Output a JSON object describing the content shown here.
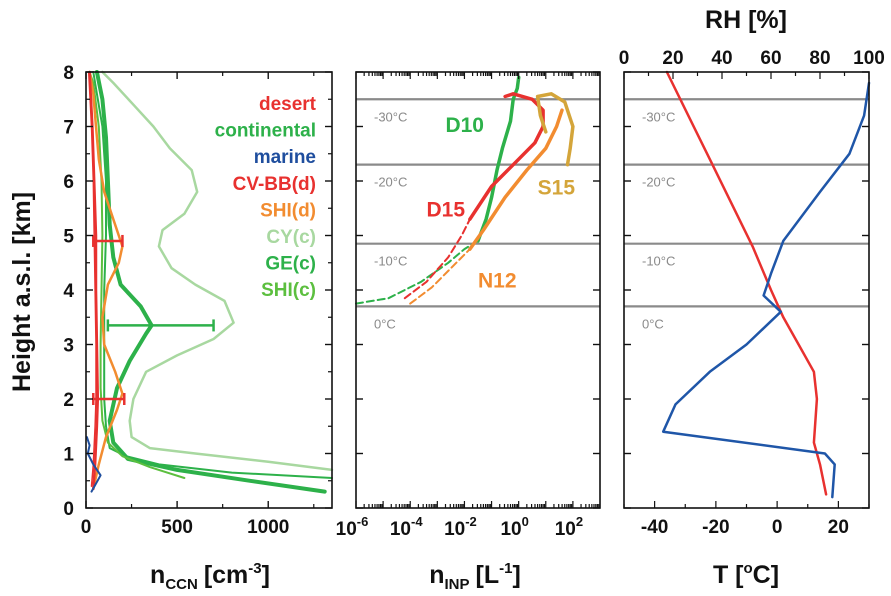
{
  "chart_data": [
    {
      "type": "line",
      "panel": "ccn",
      "xlabel": "n",
      "xlabel_sub": "CCN",
      "xlabel_unit": "[cm",
      "xlabel_sup": "-3",
      "xlabel_end": "]",
      "ylabel": "Height a.s.l. [km]",
      "xlim": [
        0,
        1350
      ],
      "ylim": [
        0,
        8
      ],
      "xticks": [
        0,
        500,
        1000
      ],
      "yticks": [
        0,
        1,
        2,
        3,
        4,
        5,
        6,
        7,
        8
      ],
      "legend": [
        "desert",
        "continental",
        "marine",
        "CV-BB(d)",
        "SHI(d)",
        "CY(c)",
        "GE(c)",
        "SHI(c)"
      ],
      "legend_colors": [
        "#e8312f",
        "#2db14a",
        "#1f4e9e",
        "#e8312f",
        "#f28c30",
        "#a8d8a0",
        "#2db14a",
        "#5cbf3f"
      ],
      "series": [
        {
          "name": "CY(c)",
          "color": "#a8d8a0",
          "width": 2.5,
          "points": [
            [
              1350,
              0.7
            ],
            [
              1000,
              0.85
            ],
            [
              600,
              1.0
            ],
            [
              350,
              1.1
            ],
            [
              250,
              1.3
            ],
            [
              240,
              1.6
            ],
            [
              260,
              2.0
            ],
            [
              330,
              2.5
            ],
            [
              500,
              2.8
            ],
            [
              700,
              3.1
            ],
            [
              810,
              3.4
            ],
            [
              760,
              3.8
            ],
            [
              600,
              4.1
            ],
            [
              470,
              4.4
            ],
            [
              400,
              4.8
            ],
            [
              420,
              5.1
            ],
            [
              540,
              5.4
            ],
            [
              610,
              5.8
            ],
            [
              580,
              6.2
            ],
            [
              460,
              6.6
            ],
            [
              370,
              7.0
            ],
            [
              260,
              7.4
            ],
            [
              150,
              7.8
            ],
            [
              90,
              8.0
            ]
          ]
        },
        {
          "name": "GE(c)",
          "color": "#2db14a",
          "width": 4,
          "points": [
            [
              1310,
              0.3
            ],
            [
              900,
              0.5
            ],
            [
              500,
              0.7
            ],
            [
              230,
              0.9
            ],
            [
              150,
              1.2
            ],
            [
              130,
              1.6
            ],
            [
              170,
              2.2
            ],
            [
              240,
              2.7
            ],
            [
              330,
              3.2
            ],
            [
              360,
              3.35
            ],
            [
              300,
              3.7
            ],
            [
              190,
              4.1
            ],
            [
              150,
              4.6
            ],
            [
              130,
              5.2
            ],
            [
              120,
              6.0
            ],
            [
              110,
              6.8
            ],
            [
              90,
              7.5
            ],
            [
              60,
              8.0
            ]
          ]
        },
        {
          "name": "continental",
          "color": "#2db14a",
          "width": 2,
          "points": [
            [
              1350,
              0.55
            ],
            [
              800,
              0.65
            ],
            [
              400,
              0.8
            ],
            [
              220,
              0.95
            ],
            [
              130,
              1.1
            ],
            [
              110,
              1.5
            ],
            [
              100,
              2.0
            ],
            [
              100,
              3.0
            ],
            [
              100,
              4.0
            ],
            [
              110,
              5.0
            ],
            [
              110,
              6.0
            ],
            [
              90,
              7.0
            ],
            [
              60,
              7.6
            ],
            [
              40,
              8.0
            ]
          ]
        },
        {
          "name": "SHI(c)",
          "color": "#5cbf3f",
          "width": 2,
          "points": [
            [
              540,
              0.55
            ],
            [
              350,
              0.75
            ],
            [
              200,
              0.95
            ],
            [
              120,
              1.2
            ],
            [
              90,
              1.6
            ],
            [
              80,
              2.2
            ],
            [
              80,
              3.0
            ],
            [
              85,
              4.0
            ],
            [
              90,
              5.0
            ],
            [
              85,
              6.0
            ],
            [
              70,
              7.0
            ],
            [
              40,
              7.8
            ],
            [
              20,
              8.0
            ]
          ]
        },
        {
          "name": "SHI(d)",
          "color": "#f28c30",
          "width": 2.5,
          "points": [
            [
              40,
              0.35
            ],
            [
              70,
              0.8
            ],
            [
              110,
              1.3
            ],
            [
              170,
              1.8
            ],
            [
              200,
              2.1
            ],
            [
              160,
              2.5
            ],
            [
              100,
              3.0
            ],
            [
              90,
              3.5
            ],
            [
              120,
              4.1
            ],
            [
              180,
              4.5
            ],
            [
              200,
              4.8
            ],
            [
              150,
              5.3
            ],
            [
              100,
              5.8
            ],
            [
              70,
              6.4
            ],
            [
              55,
              7.0
            ],
            [
              40,
              7.6
            ],
            [
              20,
              8.0
            ]
          ]
        },
        {
          "name": "CV-BB(d)",
          "color": "#e8312f",
          "width": 2.5,
          "points": [
            [
              40,
              0.35
            ],
            [
              50,
              0.8
            ],
            [
              60,
              1.5
            ],
            [
              65,
              2.0
            ],
            [
              60,
              3.0
            ],
            [
              55,
              4.0
            ],
            [
              55,
              5.0
            ],
            [
              45,
              6.0
            ],
            [
              35,
              7.0
            ],
            [
              20,
              8.0
            ]
          ]
        },
        {
          "name": "desert",
          "color": "#e8312f",
          "width": 1.5,
          "points": [
            [
              30,
              0.4
            ],
            [
              40,
              0.8
            ],
            [
              50,
              1.5
            ],
            [
              55,
              2.0
            ],
            [
              55,
              3.0
            ],
            [
              50,
              4.0
            ],
            [
              45,
              5.0
            ],
            [
              40,
              6.0
            ],
            [
              30,
              7.0
            ],
            [
              15,
              8.0
            ]
          ]
        },
        {
          "name": "marine",
          "color": "#1f4e9e",
          "width": 2,
          "points": [
            [
              30,
              0.3
            ],
            [
              80,
              0.6
            ],
            [
              40,
              0.8
            ],
            [
              10,
              1.0
            ],
            [
              20,
              1.15
            ],
            [
              5,
              1.3
            ]
          ]
        }
      ],
      "errorbars": [
        {
          "color": "#e8312f",
          "y": 4.9,
          "xmin": 40,
          "xmax": 200,
          "x": 110
        },
        {
          "color": "#e8312f",
          "y": 2.0,
          "xmin": 40,
          "xmax": 210,
          "x": 120
        },
        {
          "color": "#2db14a",
          "y": 3.35,
          "xmin": 120,
          "xmax": 700,
          "x": 360
        }
      ]
    },
    {
      "type": "line",
      "panel": "inp",
      "xlabel": "n",
      "xlabel_sub": "INP",
      "xlabel_unit": "[L",
      "xlabel_sup": "-1",
      "xlabel_end": "]",
      "xscale": "log",
      "xlim_log10": [
        -6,
        3
      ],
      "ylim": [
        0,
        8
      ],
      "xticks": [
        {
          "base": "10",
          "exp": "-6",
          "log": -6
        },
        {
          "base": "10",
          "exp": "-4",
          "log": -4
        },
        {
          "base": "10",
          "exp": "-2",
          "log": -2
        },
        {
          "base": "10",
          "exp": "0",
          "log": 0
        },
        {
          "base": "10",
          "exp": "2",
          "log": 2
        }
      ],
      "isotherms": [
        {
          "label": "0°C",
          "y": 3.7
        },
        {
          "label": "-10°C",
          "y": 4.85
        },
        {
          "label": "-20°C",
          "y": 6.3
        },
        {
          "label": "-30°C",
          "y": 7.5
        }
      ],
      "annotations": [
        {
          "text": "D10",
          "color": "#2db14a",
          "x": -2.7,
          "y": 6.9
        },
        {
          "text": "D15",
          "color": "#e8312f",
          "x": -3.4,
          "y": 5.35
        },
        {
          "text": "S15",
          "color": "#d4a53a",
          "x": 0.7,
          "y": 5.75
        },
        {
          "text": "N12",
          "color": "#f28c30",
          "x": -1.5,
          "y": 4.05
        }
      ],
      "series": [
        {
          "name": "D10",
          "color": "#2db14a",
          "width": 3.5,
          "dash": false,
          "points": [
            [
              -1.5,
              4.9
            ],
            [
              -1.2,
              5.3
            ],
            [
              -1.0,
              5.7
            ],
            [
              -0.8,
              6.2
            ],
            [
              -0.6,
              6.6
            ],
            [
              -0.3,
              7.1
            ],
            [
              -0.2,
              7.5
            ],
            [
              -0.05,
              7.7
            ],
            [
              0.0,
              7.9
            ]
          ]
        },
        {
          "name": "D10 ext",
          "color": "#2db14a",
          "width": 2,
          "dash": true,
          "points": [
            [
              -6.0,
              3.75
            ],
            [
              -4.8,
              3.85
            ],
            [
              -3.6,
              4.15
            ],
            [
              -2.6,
              4.5
            ],
            [
              -2.0,
              4.75
            ],
            [
              -1.5,
              4.9
            ]
          ]
        },
        {
          "name": "D15",
          "color": "#e8312f",
          "width": 3.5,
          "dash": false,
          "points": [
            [
              -1.8,
              5.3
            ],
            [
              -1.0,
              5.9
            ],
            [
              0.0,
              6.4
            ],
            [
              0.6,
              6.7
            ],
            [
              0.9,
              7.0
            ],
            [
              0.9,
              7.3
            ],
            [
              0.5,
              7.5
            ],
            [
              -0.2,
              7.6
            ],
            [
              -0.5,
              7.55
            ]
          ]
        },
        {
          "name": "D15 ext",
          "color": "#e8312f",
          "width": 2,
          "dash": true,
          "points": [
            [
              -4.2,
              3.85
            ],
            [
              -3.4,
              4.15
            ],
            [
              -2.6,
              4.6
            ],
            [
              -2.1,
              5.0
            ],
            [
              -1.8,
              5.3
            ]
          ]
        },
        {
          "name": "S15",
          "color": "#d4a53a",
          "width": 3.5,
          "dash": false,
          "points": [
            [
              1.8,
              6.3
            ],
            [
              1.9,
              6.6
            ],
            [
              2.0,
              7.0
            ],
            [
              1.7,
              7.45
            ],
            [
              1.2,
              7.6
            ],
            [
              0.7,
              7.55
            ],
            [
              0.8,
              7.2
            ],
            [
              1.0,
              6.9
            ]
          ]
        },
        {
          "name": "N12",
          "color": "#f28c30",
          "width": 3.5,
          "dash": false,
          "points": [
            [
              -1.8,
              4.75
            ],
            [
              -1.3,
              5.1
            ],
            [
              -0.5,
              5.7
            ],
            [
              0.3,
              6.2
            ],
            [
              1.0,
              6.6
            ],
            [
              1.4,
              7.0
            ],
            [
              1.6,
              7.3
            ]
          ]
        },
        {
          "name": "N12 ext",
          "color": "#f28c30",
          "width": 2,
          "dash": true,
          "points": [
            [
              -4.0,
              3.75
            ],
            [
              -3.2,
              4.05
            ],
            [
              -2.5,
              4.4
            ],
            [
              -1.8,
              4.75
            ]
          ]
        }
      ]
    },
    {
      "type": "line",
      "panel": "met",
      "xlabel": "T [",
      "xlabel_sup": "o",
      "xlabel_end": "C]",
      "x2label": "RH [%]",
      "xlim": [
        -50,
        30
      ],
      "x2lim": [
        0,
        100
      ],
      "ylim": [
        0,
        8
      ],
      "xticks": [
        -40,
        -20,
        0,
        20
      ],
      "x2ticks": [
        0,
        20,
        40,
        60,
        80,
        100
      ],
      "isotherms": [
        {
          "label": "0°C",
          "y": 3.7
        },
        {
          "label": "-10°C",
          "y": 4.85
        },
        {
          "label": "-20°C",
          "y": 6.3
        },
        {
          "label": "-30°C",
          "y": 7.5
        }
      ],
      "series": [
        {
          "name": "T",
          "axis": "bottom",
          "color": "#e8312f",
          "width": 2.5,
          "points": [
            [
              16,
              0.25
            ],
            [
              14,
              0.8
            ],
            [
              12,
              1.2
            ],
            [
              13,
              2.0
            ],
            [
              12,
              2.5
            ],
            [
              7,
              3.0
            ],
            [
              2,
              3.5
            ],
            [
              -2,
              4.0
            ],
            [
              -8,
              4.8
            ],
            [
              -15,
              5.6
            ],
            [
              -22,
              6.4
            ],
            [
              -29,
              7.2
            ],
            [
              -36,
              8.0
            ]
          ]
        },
        {
          "name": "RH",
          "axis": "top",
          "color": "#1f56a8",
          "width": 2.5,
          "points": [
            [
              85,
              0.2
            ],
            [
              86,
              0.8
            ],
            [
              82,
              1.0
            ],
            [
              16,
              1.4
            ],
            [
              21,
              1.9
            ],
            [
              35,
              2.5
            ],
            [
              50,
              3.0
            ],
            [
              64,
              3.6
            ],
            [
              57,
              3.9
            ],
            [
              60,
              4.3
            ],
            [
              65,
              4.9
            ],
            [
              80,
              5.8
            ],
            [
              92,
              6.5
            ],
            [
              98,
              7.2
            ],
            [
              100,
              7.8
            ]
          ]
        }
      ]
    }
  ]
}
